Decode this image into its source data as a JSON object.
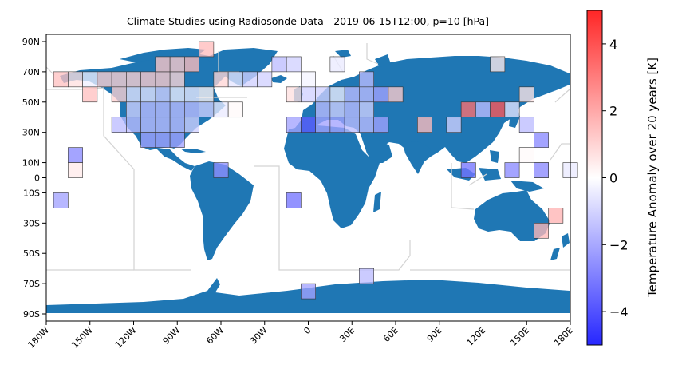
{
  "title": "Climate Studies using Radiosonde Data - 2019-06-15T12:00, p=10 [hPa]",
  "y_ticks": [
    {
      "lat": 90,
      "label": "90N"
    },
    {
      "lat": 70,
      "label": "70N"
    },
    {
      "lat": 50,
      "label": "50N"
    },
    {
      "lat": 30,
      "label": "30N"
    },
    {
      "lat": 10,
      "label": "10N"
    },
    {
      "lat": 0,
      "label": "0"
    },
    {
      "lat": -10,
      "label": "10S"
    },
    {
      "lat": -30,
      "label": "30S"
    },
    {
      "lat": -50,
      "label": "50S"
    },
    {
      "lat": -70,
      "label": "70S"
    },
    {
      "lat": -90,
      "label": "90S"
    }
  ],
  "x_ticks": [
    {
      "lon": -180,
      "label": "180W"
    },
    {
      "lon": -150,
      "label": "150W"
    },
    {
      "lon": -120,
      "label": "120W"
    },
    {
      "lon": -90,
      "label": "90W"
    },
    {
      "lon": -60,
      "label": "60W"
    },
    {
      "lon": -30,
      "label": "30W"
    },
    {
      "lon": 0,
      "label": "0"
    },
    {
      "lon": 30,
      "label": "30E"
    },
    {
      "lon": 60,
      "label": "60E"
    },
    {
      "lon": 90,
      "label": "90E"
    },
    {
      "lon": 120,
      "label": "120E"
    },
    {
      "lon": 150,
      "label": "150E"
    },
    {
      "lon": 180,
      "label": "180E"
    }
  ],
  "colorbar": {
    "label": "Temperature Anomaly over 20 years [K]",
    "min": -5,
    "max": 5,
    "ticks": [
      {
        "v": 4,
        "label": "4"
      },
      {
        "v": 2,
        "label": "2"
      },
      {
        "v": 0,
        "label": "0"
      },
      {
        "v": -2,
        "label": "−2"
      },
      {
        "v": -4,
        "label": "−4"
      }
    ],
    "colors": {
      "low": "#0000ff",
      "mid": "#ffffff",
      "high": "#ff0000"
    }
  },
  "colors": {
    "land": "#1f77b4",
    "ocean": "#ffffff",
    "boundaries": "#d3d3d3",
    "cell_edge": "#333333"
  },
  "chart_data": {
    "type": "heatmap",
    "cell_size_deg": 10,
    "value_unit": "K",
    "cells": [
      {
        "lon": -170,
        "lat": 65,
        "v": 1.2
      },
      {
        "lon": -160,
        "lat": 65,
        "v": 0.6
      },
      {
        "lon": -150,
        "lat": 65,
        "v": -0.3
      },
      {
        "lon": -140,
        "lat": 65,
        "v": 0.9
      },
      {
        "lon": -130,
        "lat": 65,
        "v": 0.9
      },
      {
        "lon": -120,
        "lat": 65,
        "v": 0.9
      },
      {
        "lon": -110,
        "lat": 65,
        "v": 1.0
      },
      {
        "lon": -100,
        "lat": 65,
        "v": 1.0
      },
      {
        "lon": -90,
        "lat": 65,
        "v": 0.8
      },
      {
        "lon": -60,
        "lat": 65,
        "v": 0.8
      },
      {
        "lon": -50,
        "lat": 65,
        "v": -0.5
      },
      {
        "lon": -40,
        "lat": 65,
        "v": -0.9
      },
      {
        "lon": -30,
        "lat": 65,
        "v": -0.9
      },
      {
        "lon": 0,
        "lat": 65,
        "v": -0.2
      },
      {
        "lon": 40,
        "lat": 65,
        "v": -1.3
      },
      {
        "lon": -150,
        "lat": 55,
        "v": 1.2
      },
      {
        "lon": -130,
        "lat": 55,
        "v": 0.9
      },
      {
        "lon": -120,
        "lat": 55,
        "v": -0.5
      },
      {
        "lon": -110,
        "lat": 55,
        "v": -0.5
      },
      {
        "lon": -100,
        "lat": 55,
        "v": -0.9
      },
      {
        "lon": -90,
        "lat": 55,
        "v": -0.3
      },
      {
        "lon": -80,
        "lat": 55,
        "v": -0.4
      },
      {
        "lon": -70,
        "lat": 55,
        "v": 0.2
      },
      {
        "lon": -10,
        "lat": 55,
        "v": 0.6
      },
      {
        "lon": 0,
        "lat": 55,
        "v": -0.9
      },
      {
        "lon": 10,
        "lat": 55,
        "v": -0.9
      },
      {
        "lon": 20,
        "lat": 55,
        "v": -0.3
      },
      {
        "lon": 30,
        "lat": 55,
        "v": -1.3
      },
      {
        "lon": 40,
        "lat": 55,
        "v": -1.3
      },
      {
        "lon": 50,
        "lat": 55,
        "v": -1.8
      },
      {
        "lon": 60,
        "lat": 55,
        "v": 1.0
      },
      {
        "lon": 150,
        "lat": 55,
        "v": 0.5
      },
      {
        "lon": -120,
        "lat": 45,
        "v": -0.9
      },
      {
        "lon": -110,
        "lat": 45,
        "v": -1.3
      },
      {
        "lon": -100,
        "lat": 45,
        "v": -1.3
      },
      {
        "lon": -90,
        "lat": 45,
        "v": -1.3
      },
      {
        "lon": -80,
        "lat": 45,
        "v": -1.3
      },
      {
        "lon": -70,
        "lat": 45,
        "v": -0.9
      },
      {
        "lon": -60,
        "lat": 45,
        "v": -0.4
      },
      {
        "lon": -50,
        "lat": 45,
        "v": 0.1
      },
      {
        "lon": 10,
        "lat": 45,
        "v": -1.3
      },
      {
        "lon": 20,
        "lat": 45,
        "v": -0.9
      },
      {
        "lon": 30,
        "lat": 45,
        "v": -1.3
      },
      {
        "lon": 40,
        "lat": 45,
        "v": -0.9
      },
      {
        "lon": 110,
        "lat": 45,
        "v": 2.8
      },
      {
        "lon": 120,
        "lat": 45,
        "v": -1.3
      },
      {
        "lon": 130,
        "lat": 45,
        "v": 3.3
      },
      {
        "lon": 140,
        "lat": 45,
        "v": -0.5
      },
      {
        "lon": -130,
        "lat": 35,
        "v": -1.3
      },
      {
        "lon": -120,
        "lat": 35,
        "v": -1.3
      },
      {
        "lon": -110,
        "lat": 35,
        "v": -1.3
      },
      {
        "lon": -100,
        "lat": 35,
        "v": -1.3
      },
      {
        "lon": -90,
        "lat": 35,
        "v": -1.3
      },
      {
        "lon": -80,
        "lat": 35,
        "v": -0.9
      },
      {
        "lon": -10,
        "lat": 35,
        "v": -1.8
      },
      {
        "lon": 0,
        "lat": 35,
        "v": -3.2
      },
      {
        "lon": 10,
        "lat": 35,
        "v": -1.8
      },
      {
        "lon": 20,
        "lat": 35,
        "v": -1.8
      },
      {
        "lon": 30,
        "lat": 35,
        "v": -1.3
      },
      {
        "lon": 40,
        "lat": 35,
        "v": -1.3
      },
      {
        "lon": 50,
        "lat": 35,
        "v": -1.8
      },
      {
        "lon": 80,
        "lat": 35,
        "v": 1.3
      },
      {
        "lon": 100,
        "lat": 35,
        "v": -0.9
      },
      {
        "lon": 150,
        "lat": 35,
        "v": -1.3
      },
      {
        "lon": -110,
        "lat": 25,
        "v": -1.8
      },
      {
        "lon": -100,
        "lat": 25,
        "v": -1.8
      },
      {
        "lon": -90,
        "lat": 25,
        "v": -1.8
      },
      {
        "lon": 160,
        "lat": 25,
        "v": -2.3
      },
      {
        "lon": -160,
        "lat": 15,
        "v": -2.3
      },
      {
        "lon": 150,
        "lat": 15,
        "v": 0.1
      },
      {
        "lon": -160,
        "lat": 5,
        "v": 0.4
      },
      {
        "lon": -60,
        "lat": 5,
        "v": -2.2
      },
      {
        "lon": 160,
        "lat": 5,
        "v": 0.1
      },
      {
        "lon": 110,
        "lat": 5,
        "v": -2.7
      },
      {
        "lon": 140,
        "lat": 5,
        "v": -2.3
      },
      {
        "lon": 160,
        "lat": 5,
        "v": -2.3
      },
      {
        "lon": 180,
        "lat": 5,
        "v": -0.4
      },
      {
        "lon": -170,
        "lat": -15,
        "v": -1.8
      },
      {
        "lon": -10,
        "lat": -15,
        "v": -2.7
      },
      {
        "lon": 170,
        "lat": -25,
        "v": 1.5
      },
      {
        "lon": 160,
        "lat": -35,
        "v": 1.4
      },
      {
        "lon": 40,
        "lat": -65,
        "v": -1.3
      },
      {
        "lon": 0,
        "lat": -75,
        "v": -1.8
      },
      {
        "lon": -70,
        "lat": 85,
        "v": 1.3
      },
      {
        "lon": -100,
        "lat": 75,
        "v": 1.1
      },
      {
        "lon": -80,
        "lat": 75,
        "v": 1.3
      },
      {
        "lon": -90,
        "lat": 75,
        "v": 1.0
      },
      {
        "lon": -20,
        "lat": 75,
        "v": -1.3
      },
      {
        "lon": -10,
        "lat": 75,
        "v": -0.9
      },
      {
        "lon": 20,
        "lat": 75,
        "v": -0.4
      },
      {
        "lon": 130,
        "lat": 75,
        "v": 0.4
      }
    ]
  }
}
